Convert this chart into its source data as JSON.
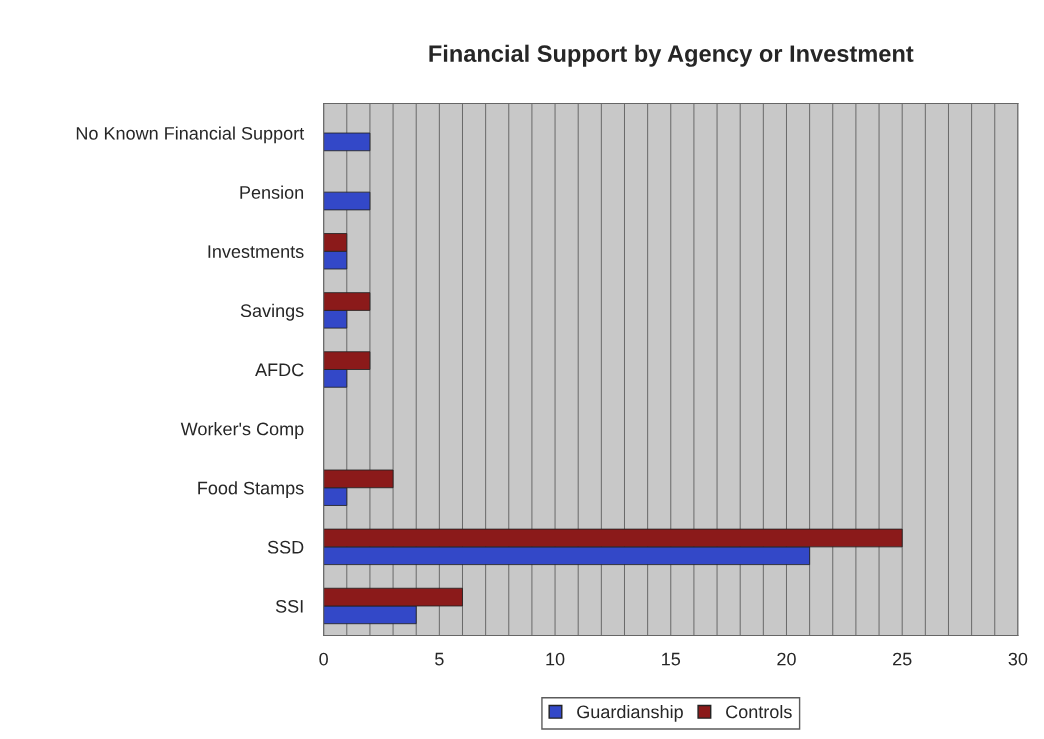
{
  "chart_data": {
    "type": "bar",
    "orientation": "horizontal",
    "title": "Financial Support by Agency or Investment",
    "categories": [
      "No Known Financial Support",
      "Pension",
      "Investments",
      "Savings",
      "AFDC",
      "Worker's Comp",
      "Food Stamps",
      "SSD",
      "SSI"
    ],
    "series": [
      {
        "name": "Guardianship",
        "color": "#3348c8",
        "values": [
          2,
          2,
          1,
          1,
          1,
          null,
          1,
          21,
          4
        ]
      },
      {
        "name": "Controls",
        "color": "#8b1a1a",
        "values": [
          null,
          null,
          1,
          2,
          2,
          null,
          3,
          25,
          6
        ]
      }
    ],
    "xlim": [
      0,
      30
    ],
    "xticks": [
      0,
      {
        "value": 1,
        "label": null
      },
      {
        "value": 2,
        "label": null
      },
      {
        "value": 3,
        "label": null
      },
      {
        "value": 4,
        "label": null
      },
      5,
      {
        "value": 6,
        "label": null
      },
      {
        "value": 7,
        "label": null
      },
      {
        "value": 8,
        "label": null
      },
      {
        "value": 9,
        "label": null
      },
      10,
      {
        "value": 11,
        "label": null
      },
      {
        "value": 12,
        "label": null
      },
      {
        "value": 13,
        "label": null
      },
      {
        "value": 14,
        "label": null
      },
      15,
      {
        "value": 16,
        "label": null
      },
      {
        "value": 17,
        "label": null
      },
      {
        "value": 18,
        "label": null
      },
      {
        "value": 19,
        "label": null
      },
      20,
      {
        "value": 21,
        "label": null
      },
      {
        "value": 22,
        "label": null
      },
      {
        "value": 23,
        "label": null
      },
      {
        "value": 24,
        "label": null
      },
      25,
      {
        "value": 26,
        "label": null
      },
      {
        "value": 27,
        "label": null
      },
      {
        "value": 28,
        "label": null
      },
      {
        "value": 29,
        "label": null
      },
      30
    ],
    "grid": "x",
    "legend": "bottom"
  }
}
